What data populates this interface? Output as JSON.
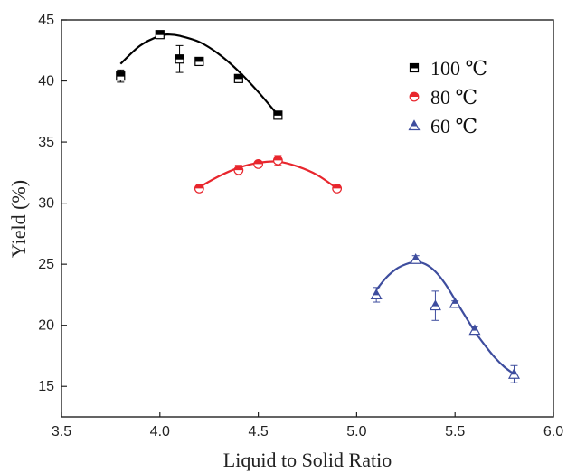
{
  "chart_data": {
    "type": "scatter",
    "title": "",
    "xlabel": "Liquid to Solid Ratio",
    "ylabel": "Yield (%)",
    "xlim": [
      3.5,
      6.0
    ],
    "ylim": [
      12.5,
      45
    ],
    "xticks": [
      "3.5",
      "4.0",
      "4.5",
      "5.0",
      "5.5",
      "6.0"
    ],
    "yticks": [
      "15",
      "20",
      "25",
      "30",
      "35",
      "40",
      "45"
    ],
    "grid": false,
    "legend_position": "top-right",
    "series": [
      {
        "name": "100 ℃",
        "color": "#000000",
        "marker": "square",
        "points": [
          {
            "x": 3.8,
            "y": 40.4,
            "err": 0.5
          },
          {
            "x": 4.0,
            "y": 43.8,
            "err": 0.0
          },
          {
            "x": 4.1,
            "y": 41.8,
            "err": 1.1
          },
          {
            "x": 4.2,
            "y": 41.6,
            "err": 0.3
          },
          {
            "x": 4.4,
            "y": 40.2,
            "err": 0.2
          },
          {
            "x": 4.6,
            "y": 37.2,
            "err": 0.3
          }
        ],
        "fit": [
          [
            3.8,
            41.4
          ],
          [
            3.9,
            42.9
          ],
          [
            4.0,
            43.7
          ],
          [
            4.05,
            43.8
          ],
          [
            4.1,
            43.7
          ],
          [
            4.2,
            43.2
          ],
          [
            4.3,
            42.2
          ],
          [
            4.4,
            40.8
          ],
          [
            4.5,
            39.1
          ],
          [
            4.6,
            37.2
          ]
        ]
      },
      {
        "name": "80 ℃",
        "color": "#e8262d",
        "marker": "half-circle",
        "points": [
          {
            "x": 4.2,
            "y": 31.2,
            "err": 0.2
          },
          {
            "x": 4.4,
            "y": 32.7,
            "err": 0.4
          },
          {
            "x": 4.5,
            "y": 33.2,
            "err": 0.2
          },
          {
            "x": 4.6,
            "y": 33.5,
            "err": 0.4
          },
          {
            "x": 4.9,
            "y": 31.2,
            "err": 0.2
          }
        ],
        "fit": [
          [
            4.2,
            31.3
          ],
          [
            4.3,
            32.2
          ],
          [
            4.4,
            32.9
          ],
          [
            4.5,
            33.3
          ],
          [
            4.6,
            33.4
          ],
          [
            4.7,
            33.0
          ],
          [
            4.8,
            32.3
          ],
          [
            4.9,
            31.2
          ]
        ]
      },
      {
        "name": "60 ℃",
        "color": "#3e4d9e",
        "marker": "half-triangle",
        "points": [
          {
            "x": 5.1,
            "y": 22.5,
            "err": 0.6
          },
          {
            "x": 5.3,
            "y": 25.4,
            "err": 0.3
          },
          {
            "x": 5.4,
            "y": 21.6,
            "err": 1.2
          },
          {
            "x": 5.5,
            "y": 21.8,
            "err": 0.2
          },
          {
            "x": 5.6,
            "y": 19.6,
            "err": 0.3
          },
          {
            "x": 5.8,
            "y": 16.0,
            "err": 0.7
          }
        ],
        "fit": [
          [
            5.1,
            22.9
          ],
          [
            5.15,
            23.9
          ],
          [
            5.2,
            24.6
          ],
          [
            5.25,
            25.0
          ],
          [
            5.3,
            25.2
          ],
          [
            5.35,
            25.0
          ],
          [
            5.4,
            24.4
          ],
          [
            5.45,
            23.4
          ],
          [
            5.5,
            22.1
          ],
          [
            5.55,
            20.8
          ],
          [
            5.6,
            19.5
          ],
          [
            5.65,
            18.4
          ],
          [
            5.7,
            17.4
          ],
          [
            5.75,
            16.6
          ],
          [
            5.8,
            16.0
          ]
        ]
      }
    ]
  }
}
